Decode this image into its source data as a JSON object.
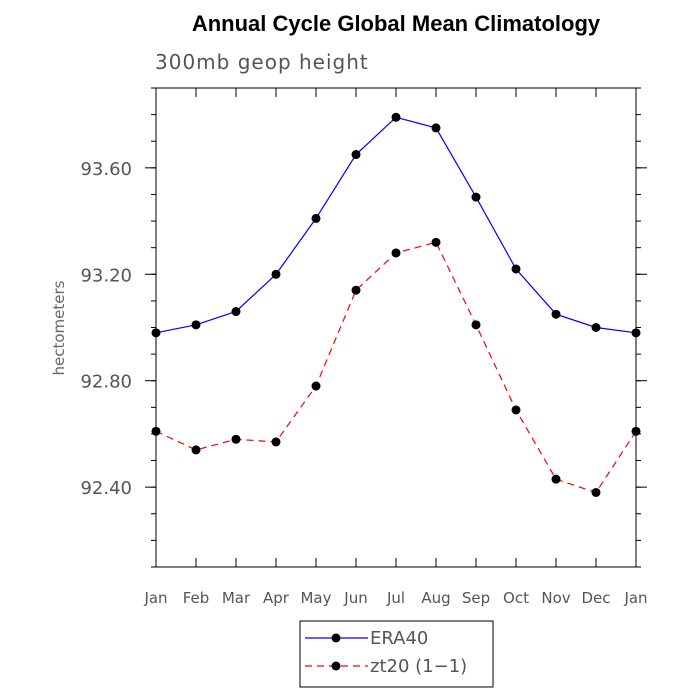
{
  "chart_data": {
    "type": "line",
    "title": "Annual Cycle Global Mean Climatology",
    "subtitle": "300mb geop height",
    "xlabel": "",
    "ylabel": "hectometers",
    "categories": [
      "Jan",
      "Feb",
      "Mar",
      "Apr",
      "May",
      "Jun",
      "Jul",
      "Aug",
      "Sep",
      "Oct",
      "Nov",
      "Dec",
      "Jan"
    ],
    "ylim": [
      92.1,
      93.9
    ],
    "yticks": [
      92.4,
      92.8,
      93.2,
      93.6
    ],
    "ytick_labels": [
      "92.40",
      "92.80",
      "93.20",
      "93.60"
    ],
    "series": [
      {
        "name": "ERA40",
        "color": "#0000ff",
        "dash": "solid",
        "values": [
          92.98,
          93.01,
          93.06,
          93.2,
          93.41,
          93.65,
          93.79,
          93.75,
          93.49,
          93.22,
          93.05,
          93.0,
          92.98
        ]
      },
      {
        "name": "zt20 (1-1)",
        "color": "#ff0000",
        "dash": "dashed",
        "values": [
          92.61,
          92.54,
          92.58,
          92.57,
          92.78,
          93.14,
          93.28,
          93.32,
          93.01,
          92.69,
          92.43,
          92.38,
          92.61
        ]
      }
    ],
    "legend": {
      "position": "bottom-center",
      "entries": [
        "ERA40",
        "zt20 (1−1)"
      ]
    }
  }
}
